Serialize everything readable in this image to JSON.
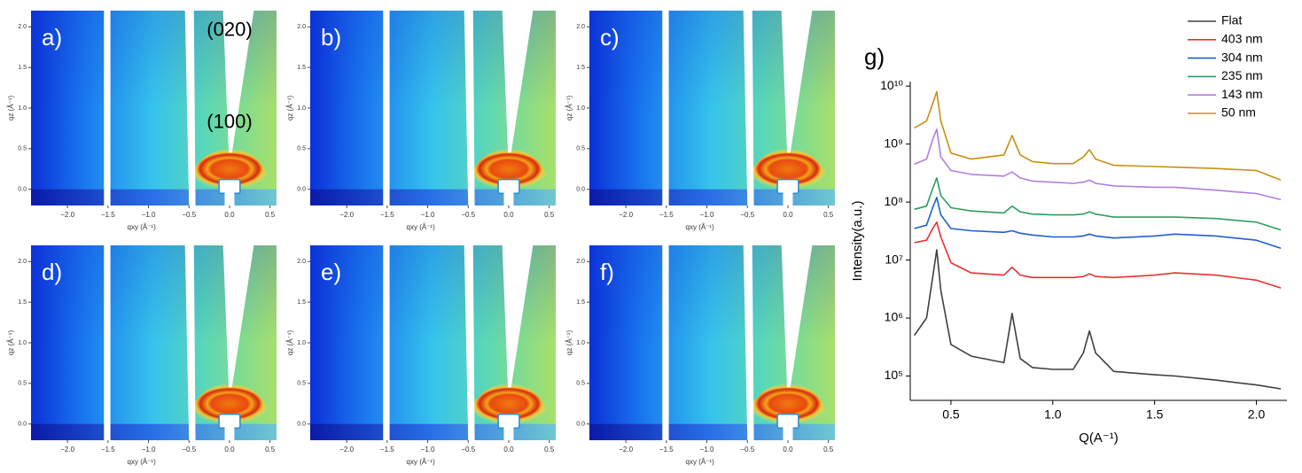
{
  "chart_data": [
    {
      "type": "image-grid",
      "xlabel": "qxy (Å⁻¹)",
      "ylabel": "qz (Å⁻¹)",
      "xlim": [
        -2.45,
        0.58
      ],
      "ylim": [
        -0.2,
        2.2
      ],
      "xticks": [
        {
          "value": -2,
          "label": "−2.0"
        },
        {
          "value": -1.5,
          "label": "−1.5"
        },
        {
          "value": -1,
          "label": "−1.0"
        },
        {
          "value": -0.5,
          "label": "−0.5"
        },
        {
          "value": 0,
          "label": "0.0"
        },
        {
          "value": 0.5,
          "label": "0.5"
        }
      ],
      "yticks": [
        {
          "value": 0,
          "label": "0.0"
        },
        {
          "value": 0.5,
          "label": "0.5"
        },
        {
          "value": 1,
          "label": "1.0"
        },
        {
          "value": 1.5,
          "label": "1.5"
        },
        {
          "value": 2,
          "label": "2.0"
        }
      ],
      "panels": [
        {
          "label": "a)",
          "annotations": [
            "(020)",
            "(100)"
          ]
        },
        {
          "label": "b)"
        },
        {
          "label": "c)"
        },
        {
          "label": "d)"
        },
        {
          "label": "e)"
        },
        {
          "label": "f)"
        }
      ]
    },
    {
      "type": "line",
      "panel_label": "g)",
      "xlabel": "Q(A⁻¹)",
      "ylabel": "Intensity(a.u.)",
      "log_y": true,
      "xlim": [
        0.3,
        2.15
      ],
      "ylim": [
        38000,
        12000000000
      ],
      "xticks": [
        0.5,
        {
          "value": 1,
          "label": "1.0"
        },
        1.5,
        {
          "value": 2,
          "label": "2.0"
        }
      ],
      "yticks": [
        {
          "value": 100000,
          "label": "10⁵"
        },
        {
          "value": 1000000,
          "label": "10⁶"
        },
        {
          "value": 10000000,
          "label": "10⁷"
        },
        {
          "value": 100000000,
          "label": "10⁸"
        },
        {
          "value": 1000000000,
          "label": "10⁹"
        },
        {
          "value": 10000000000,
          "label": "10¹⁰"
        }
      ],
      "x": [
        0.32,
        0.38,
        0.41,
        0.43,
        0.45,
        0.5,
        0.6,
        0.76,
        0.8,
        0.84,
        0.9,
        1.0,
        1.1,
        1.15,
        1.18,
        1.21,
        1.3,
        1.5,
        1.6,
        1.8,
        2.0,
        2.12
      ],
      "series": [
        {
          "name": "Flat",
          "color": "#404040",
          "values": [
            500000,
            1000000,
            5000000,
            15000000,
            3000000,
            350000,
            220000,
            170000,
            1200000,
            200000,
            140000,
            130000,
            130000,
            250000,
            600000,
            250000,
            120000,
            105000,
            100000,
            85000,
            70000,
            60000
          ]
        },
        {
          "name": "403 nm",
          "color": "#e8312f",
          "values": [
            20000000,
            22000000,
            35000000,
            45000000,
            25000000,
            9000000,
            6000000,
            5500000,
            7500000,
            5500000,
            5000000,
            5000000,
            5000000,
            5200000,
            5800000,
            5200000,
            5000000,
            5500000,
            6000000,
            5500000,
            4500000,
            3300000
          ]
        },
        {
          "name": "304 nm",
          "color": "#1f5fd0",
          "values": [
            35000000,
            40000000,
            80000000,
            120000000,
            60000000,
            35000000,
            32000000,
            30000000,
            32000000,
            29000000,
            27000000,
            25000000,
            25000000,
            26000000,
            28000000,
            26000000,
            24000000,
            26000000,
            28000000,
            26000000,
            22000000,
            16000000
          ]
        },
        {
          "name": "235 nm",
          "color": "#2e9e5e",
          "values": [
            75000000,
            85000000,
            170000000,
            260000000,
            130000000,
            80000000,
            70000000,
            65000000,
            85000000,
            68000000,
            62000000,
            60000000,
            60000000,
            62000000,
            68000000,
            62000000,
            55000000,
            55000000,
            55000000,
            52000000,
            45000000,
            33000000
          ]
        },
        {
          "name": "143 nm",
          "color": "#b07ee0",
          "values": [
            450000000,
            550000000,
            1200000000,
            1800000000,
            600000000,
            350000000,
            300000000,
            280000000,
            330000000,
            260000000,
            230000000,
            220000000,
            210000000,
            220000000,
            240000000,
            210000000,
            190000000,
            180000000,
            180000000,
            160000000,
            140000000,
            110000000
          ]
        },
        {
          "name": "50 nm",
          "color": "#c89010",
          "values": [
            1900000000,
            2500000000,
            5000000000,
            8000000000,
            2500000000,
            700000000,
            550000000,
            650000000,
            1400000000,
            650000000,
            500000000,
            460000000,
            460000000,
            600000000,
            800000000,
            550000000,
            430000000,
            410000000,
            400000000,
            380000000,
            350000000,
            240000000
          ]
        }
      ]
    }
  ]
}
